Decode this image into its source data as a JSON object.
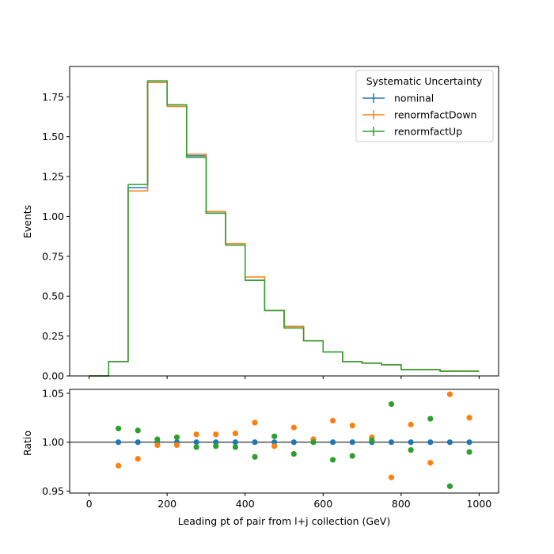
{
  "chart_data": [
    {
      "type": "step",
      "panel": "main",
      "xlabel": "",
      "ylabel": "Events",
      "xlim": [
        -50,
        1050
      ],
      "ylim": [
        0,
        1.94
      ],
      "yticks": [
        0.0,
        0.25,
        0.5,
        0.75,
        1.0,
        1.25,
        1.5,
        1.75
      ],
      "ytick_labels": [
        "0.00",
        "0.25",
        "0.50",
        "0.75",
        "1.00",
        "1.25",
        "1.50",
        "1.75"
      ],
      "xticks": [
        0,
        200,
        400,
        600,
        800,
        1000
      ],
      "bin_edges": [
        0,
        50,
        100,
        150,
        200,
        250,
        300,
        350,
        400,
        450,
        500,
        550,
        600,
        650,
        700,
        750,
        800,
        850,
        900,
        950,
        1000
      ],
      "legend": {
        "title": "Systematic Uncertainty",
        "placement": "top-right"
      },
      "series": [
        {
          "name": "nominal",
          "color": "#1f77b4",
          "values": [
            0.0,
            0.09,
            1.18,
            1.84,
            1.69,
            1.38,
            1.02,
            0.83,
            0.6,
            0.41,
            0.31,
            0.22,
            0.15,
            0.09,
            0.08,
            0.07,
            0.04,
            0.04,
            0.03,
            0.03
          ]
        },
        {
          "name": "renormfactDown",
          "color": "#ff7f0e",
          "values": [
            0.0,
            0.09,
            1.16,
            1.84,
            1.69,
            1.39,
            1.03,
            0.83,
            0.62,
            0.41,
            0.31,
            0.22,
            0.15,
            0.09,
            0.08,
            0.07,
            0.04,
            0.04,
            0.03,
            0.03
          ]
        },
        {
          "name": "renormfactUp",
          "color": "#2ca02c",
          "values": [
            0.0,
            0.09,
            1.2,
            1.85,
            1.7,
            1.37,
            1.02,
            0.82,
            0.6,
            0.41,
            0.3,
            0.22,
            0.15,
            0.09,
            0.08,
            0.07,
            0.04,
            0.04,
            0.03,
            0.03
          ]
        }
      ]
    },
    {
      "type": "scatter",
      "panel": "ratio",
      "xlabel": "Leading pt of pair from l+j collection (GeV)",
      "ylabel": "Ratio",
      "xlim": [
        -50,
        1050
      ],
      "ylim": [
        0.948,
        1.054
      ],
      "yticks": [
        0.95,
        1.0,
        1.05
      ],
      "ytick_labels": [
        "0.95",
        "1.00",
        "1.05"
      ],
      "xticks": [
        0,
        200,
        400,
        600,
        800,
        1000
      ],
      "xtick_labels": [
        "0",
        "200",
        "400",
        "600",
        "800",
        "1000"
      ],
      "reference_line": 1.0,
      "x": [
        75,
        125,
        175,
        225,
        275,
        325,
        375,
        425,
        475,
        525,
        575,
        625,
        675,
        725,
        775,
        825,
        875,
        925,
        975
      ],
      "series": [
        {
          "name": "nominal",
          "color": "#1f77b4",
          "values": [
            1.0,
            1.0,
            1.0,
            1.0,
            1.0,
            1.0,
            1.0,
            1.0,
            1.0,
            1.0,
            1.0,
            1.0,
            1.0,
            1.0,
            1.0,
            1.0,
            1.0,
            1.0,
            1.0
          ]
        },
        {
          "name": "renormfactDown",
          "color": "#ff7f0e",
          "values": [
            0.976,
            0.983,
            0.997,
            0.997,
            1.008,
            1.008,
            1.009,
            1.02,
            0.996,
            1.015,
            1.003,
            1.022,
            1.017,
            1.005,
            0.964,
            1.018,
            0.979,
            1.049,
            1.025
          ]
        },
        {
          "name": "renormfactUp",
          "color": "#2ca02c",
          "values": [
            1.014,
            1.012,
            1.003,
            1.005,
            0.995,
            0.996,
            0.995,
            0.985,
            1.006,
            0.988,
            1.0,
            0.982,
            0.986,
            1.002,
            1.039,
            0.992,
            1.024,
            0.955,
            0.99
          ]
        }
      ]
    }
  ]
}
